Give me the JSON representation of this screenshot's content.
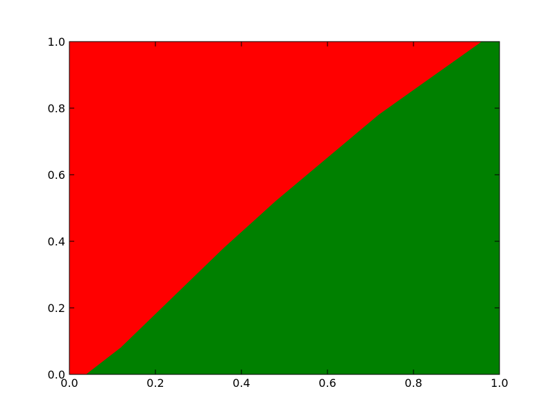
{
  "chart_data": {
    "type": "area",
    "title": "",
    "xlabel": "",
    "ylabel": "",
    "xlim": [
      0.0,
      1.0
    ],
    "ylim": [
      0.0,
      1.0
    ],
    "grid": false,
    "legend": "none",
    "x_ticks": [
      "0.0",
      "0.2",
      "0.4",
      "0.6",
      "0.8",
      "1.0"
    ],
    "y_ticks": [
      "0.0",
      "0.2",
      "0.4",
      "0.6",
      "0.8",
      "1.0"
    ],
    "regions": [
      {
        "color": "#ff0000",
        "position": "above-boundary"
      },
      {
        "color": "#008000",
        "position": "below-boundary"
      }
    ],
    "boundary": {
      "x": [
        0.04,
        0.12,
        0.24,
        0.36,
        0.48,
        0.6,
        0.72,
        0.84,
        0.96
      ],
      "y": [
        0.0,
        0.08,
        0.23,
        0.38,
        0.52,
        0.65,
        0.78,
        0.89,
        1.0
      ]
    }
  }
}
